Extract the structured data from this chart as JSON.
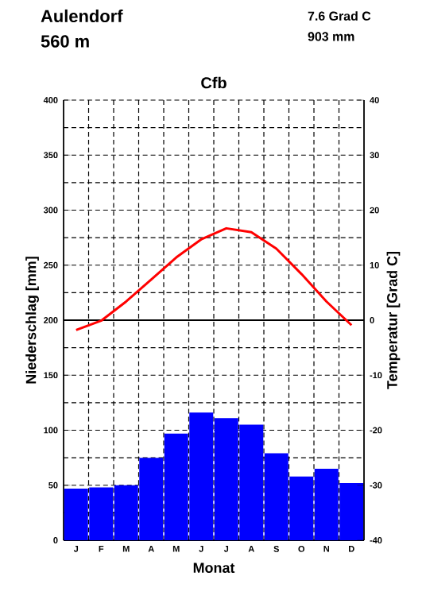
{
  "chart_data": {
    "type": "bar",
    "title": "Cfb",
    "annotations": [
      "Aulendorf",
      "560 m",
      "7.6 Grad C",
      "903 mm"
    ],
    "xlabel": "Monat",
    "ylabel": "Niederschlag [mm]",
    "y2label": "Temperatur [Grad C]",
    "categories": [
      "J",
      "F",
      "M",
      "A",
      "M",
      "J",
      "J",
      "A",
      "S",
      "O",
      "N",
      "D"
    ],
    "series": [
      {
        "color": "#0000ff",
        "values": [
          47,
          48,
          50,
          75,
          97,
          116,
          111,
          105,
          79,
          58,
          65,
          52
        ]
      },
      {
        "type": "line",
        "axis": "y2",
        "color": "#ff0000",
        "values": [
          -1.8,
          -0.1,
          3.4,
          7.4,
          11.4,
          14.7,
          16.7,
          16.0,
          13.0,
          8.4,
          3.4,
          -0.9
        ]
      }
    ],
    "ylim": [
      0,
      400
    ],
    "yticks": [
      0,
      50,
      100,
      150,
      200,
      250,
      300,
      350,
      400
    ],
    "y2lim": [
      -40,
      40
    ],
    "y2ticks": [
      -40,
      -30,
      -20,
      -10,
      0,
      10,
      20,
      30,
      40
    ],
    "ref_lines": [
      {
        "axis": "y2",
        "value": 0,
        "color": "#000000"
      }
    ],
    "grid": true
  }
}
